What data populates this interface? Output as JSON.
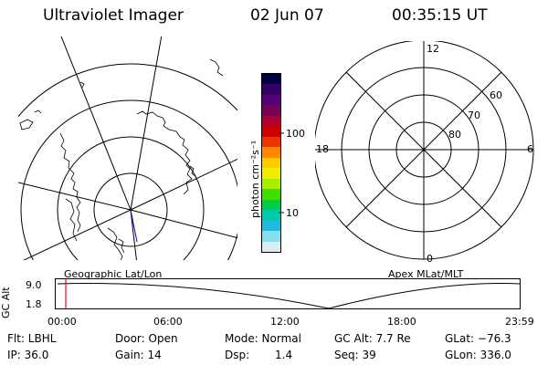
{
  "header": {
    "title": "Ultraviolet Imager",
    "date": "02 Jun 07",
    "time": "00:35:15 UT"
  },
  "colorbar": {
    "label": "photon cm⁻²s⁻¹",
    "ticks": [
      "100",
      "10"
    ],
    "colors": [
      "#000044",
      "#330066",
      "#550077",
      "#770055",
      "#aa0033",
      "#cc0000",
      "#ee3300",
      "#ff8800",
      "#ffcc00",
      "#eeee00",
      "#aaee00",
      "#44dd00",
      "#00cc44",
      "#00ccaa",
      "#22bbdd",
      "#88ddee",
      "#d8eef2"
    ]
  },
  "right_polar": {
    "clock_labels": [
      "12",
      "18",
      "6",
      "0"
    ],
    "lat_labels": [
      "60",
      "70",
      "80"
    ]
  },
  "panel_labels": {
    "left": "Geographic Lat/Lon",
    "right": "Apex MLat/MLT"
  },
  "altitude_plot": {
    "ylabel": "GC Alt",
    "yticks": [
      "9.0",
      "1.8"
    ],
    "xticks": [
      "00:00",
      "06:00",
      "12:00",
      "18:00",
      "23:59"
    ],
    "marker_color": "#ff0000"
  },
  "status": {
    "flt": "Flt: LBHL",
    "door": "Door: Open",
    "mode": "Mode: Normal",
    "gc_alt": "GC Alt: 7.7 Re",
    "glat": "GLat: −76.3",
    "ip": "IP: 36.0",
    "gain": "Gain: 14",
    "dsp_label": "Dsp:",
    "dsp_value": "1.4",
    "seq": "Seq: 39",
    "glon": "GLon: 336.0"
  }
}
